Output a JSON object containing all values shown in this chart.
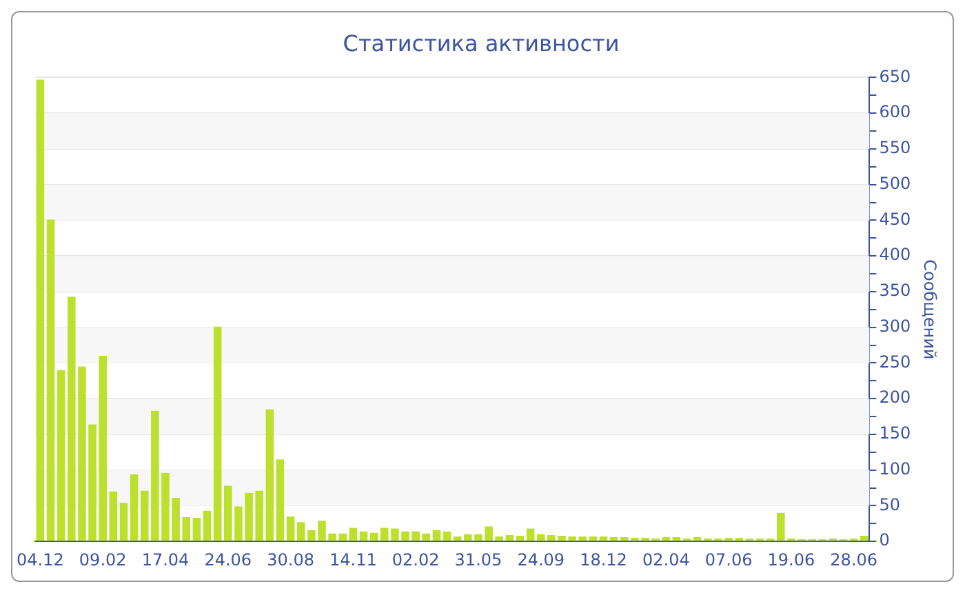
{
  "chart_data": {
    "type": "bar",
    "title": "Статистика активности",
    "ylabel": "Сообщений",
    "categories": [
      "04.12",
      null,
      null,
      null,
      null,
      null,
      "09.02",
      null,
      null,
      null,
      null,
      null,
      "17.04",
      null,
      null,
      null,
      null,
      null,
      "24.06",
      null,
      null,
      null,
      null,
      null,
      "30.08",
      null,
      null,
      null,
      null,
      null,
      "14.11",
      null,
      null,
      null,
      null,
      null,
      "02.02",
      null,
      null,
      null,
      null,
      null,
      "31.05",
      null,
      null,
      null,
      null,
      null,
      "24.09",
      null,
      null,
      null,
      null,
      null,
      "18.12",
      null,
      null,
      null,
      null,
      null,
      "02.04",
      null,
      null,
      null,
      null,
      null,
      "07.06",
      null,
      null,
      null,
      null,
      null,
      "19.06",
      null,
      null,
      null,
      null,
      null,
      "28.06",
      null
    ],
    "values": [
      647,
      451,
      240,
      343,
      245,
      164,
      260,
      70,
      54,
      94,
      71,
      183,
      96,
      61,
      34,
      33,
      43,
      301,
      78,
      49,
      68,
      71,
      185,
      115,
      35,
      27,
      16,
      29,
      11,
      11,
      19,
      14,
      12,
      19,
      18,
      14,
      14,
      11,
      16,
      14,
      7,
      10,
      10,
      21,
      7,
      9,
      8,
      18,
      10,
      9,
      8,
      7,
      7,
      7,
      7,
      6,
      6,
      5,
      5,
      4,
      6,
      6,
      4,
      6,
      4,
      4,
      5,
      5,
      4,
      4,
      4,
      40,
      4,
      3,
      3,
      3,
      4,
      3,
      4,
      8
    ],
    "color": "#bde02f",
    "ylim": [
      0,
      650
    ],
    "yticks": [
      0,
      {
        "value": 25,
        "label": null
      },
      50,
      {
        "value": 75,
        "label": null
      },
      100,
      {
        "value": 125,
        "label": null
      },
      150,
      {
        "value": 175,
        "label": null
      },
      200,
      {
        "value": 225,
        "label": null
      },
      250,
      {
        "value": 275,
        "label": null
      },
      300,
      {
        "value": 325,
        "label": null
      },
      350,
      {
        "value": 375,
        "label": null
      },
      400,
      {
        "value": 425,
        "label": null
      },
      450,
      {
        "value": 475,
        "label": null
      },
      500,
      {
        "value": 525,
        "label": null
      },
      550,
      {
        "value": 575,
        "label": null
      },
      600,
      {
        "value": 625,
        "label": null
      },
      650
    ],
    "grid": "y"
  }
}
